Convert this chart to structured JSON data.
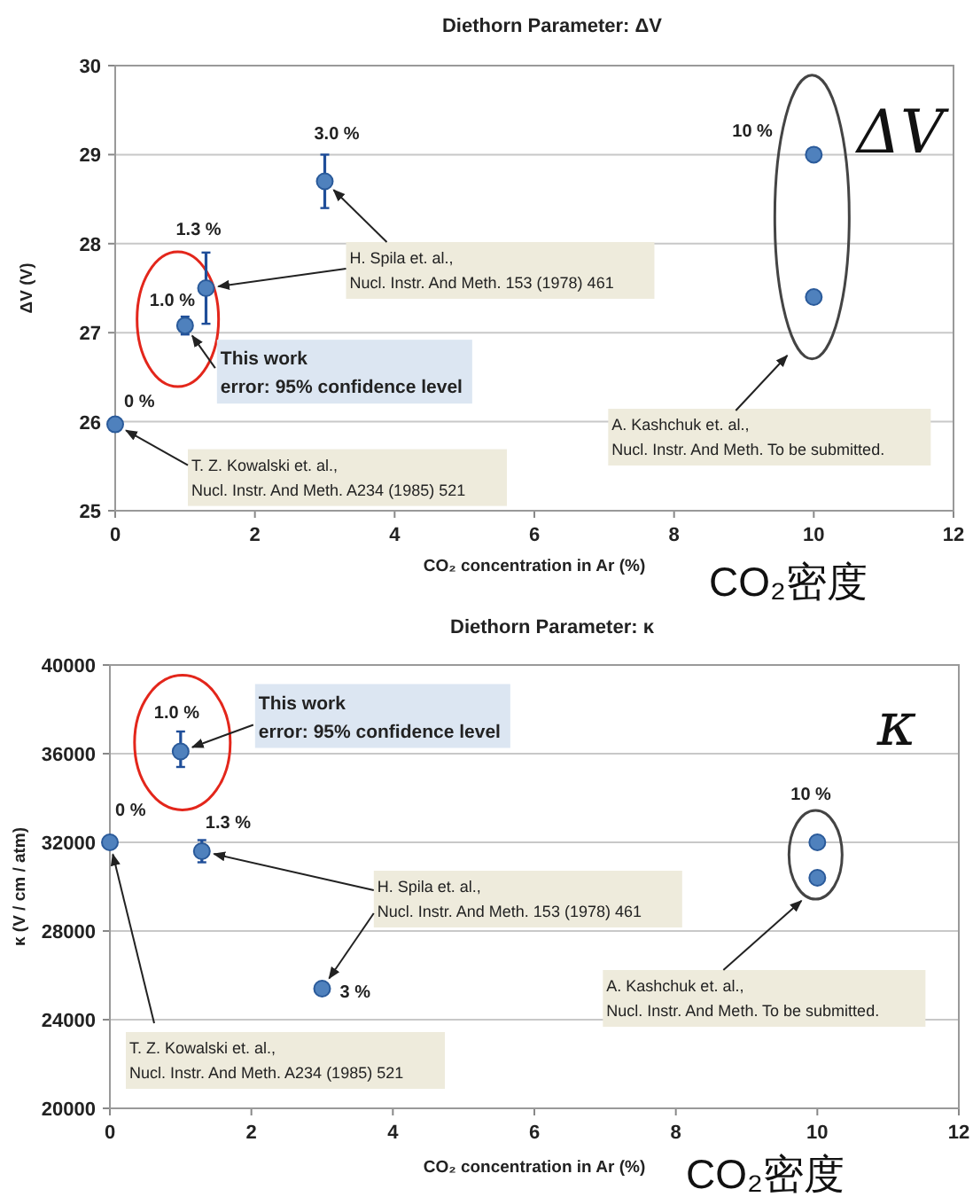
{
  "chart_data": [
    {
      "type": "scatter",
      "title": "Diethorn Parameter: ΔV",
      "xlabel": "CO₂ concentration in Ar (%)",
      "ylabel": "ΔV (V)",
      "x": [
        0,
        1,
        1.3,
        3,
        10,
        10
      ],
      "values": [
        25.97,
        27.08,
        27.5,
        28.7,
        29.0,
        27.4
      ],
      "errors": [
        null,
        [
          26.98,
          27.18
        ],
        [
          27.1,
          27.9
        ],
        [
          28.4,
          29.0
        ],
        null,
        null
      ],
      "color": "#4f81bd",
      "xlim": [
        0,
        12
      ],
      "ylim": [
        25,
        30
      ],
      "xticks": [
        0,
        2,
        4,
        6,
        8,
        10,
        12
      ],
      "yticks": [
        25,
        26,
        27,
        28,
        29,
        30
      ],
      "grid": "y",
      "marker": "circle",
      "annotations": [
        {
          "text": "0 %",
          "x": 0,
          "y": 25.97
        },
        {
          "text": "1.0 %",
          "x": 1,
          "y": 27.08
        },
        {
          "text": "1.3 %",
          "x": 1.3,
          "y": 27.5
        },
        {
          "text": "3.0 %",
          "x": 3,
          "y": 28.7
        },
        {
          "text": "10 %",
          "x": 10,
          "y": 29.0
        },
        {
          "text": "T. Z. Kowalski et. al.,\nNucl. Instr. And Meth. A234 (1985) 521",
          "x": 0,
          "y": 25.97
        },
        {
          "text": "H. Spila et. al.,\nNucl. Instr. And Meth. 153 (1978) 461",
          "x": 1.3,
          "y": 27.5
        },
        {
          "text": "This work\nerror: 95% confidence level",
          "x": 1,
          "y": 27.08
        },
        "A. Kashchuk et. al.,\nNucl. Instr. And Meth. To be submitted.",
        "ΔV",
        "CO₂密度"
      ]
    },
    {
      "type": "scatter",
      "title": "Diethorn Parameter: κ",
      "xlabel": "CO₂ concentration in Ar (%)",
      "ylabel": "κ (V / cm / atm)",
      "x": [
        0,
        1,
        1.3,
        3,
        10,
        10
      ],
      "values": [
        32000,
        36100,
        31600,
        25400,
        32000,
        30400
      ],
      "errors": [
        null,
        [
          35400,
          37000
        ],
        [
          31100,
          32100
        ],
        null,
        null,
        null
      ],
      "color": "#4f81bd",
      "xlim": [
        0,
        12
      ],
      "ylim": [
        20000,
        40000
      ],
      "xticks": [
        0,
        2,
        4,
        6,
        8,
        10,
        12
      ],
      "yticks": [
        20000,
        24000,
        28000,
        32000,
        36000,
        40000
      ],
      "grid": "y",
      "marker": "circle",
      "annotations": [
        {
          "text": "0 %",
          "x": 0,
          "y": 32000
        },
        {
          "text": "1.0 %",
          "x": 1,
          "y": 36100
        },
        {
          "text": "1.3 %",
          "x": 1.3,
          "y": 31600
        },
        {
          "text": "3 %",
          "x": 3,
          "y": 25400
        },
        {
          "text": "10 %",
          "x": 10,
          "y": 32000
        },
        {
          "text": "T. Z. Kowalski et. al.,\nNucl. Instr. And Meth. A234 (1985) 521",
          "x": 0,
          "y": 32000
        },
        {
          "text": "H. Spila et. al.,\nNucl. Instr. And Meth. 153 (1978) 461",
          "x": 1.3,
          "y": 31600
        },
        {
          "text": "This work\nerror: 95% confidence level",
          "x": 1,
          "y": 36100
        },
        "A. Kashchuk et. al.,\nNucl. Instr. And Meth. To be submitted.",
        "κ",
        "CO₂密度"
      ]
    }
  ]
}
